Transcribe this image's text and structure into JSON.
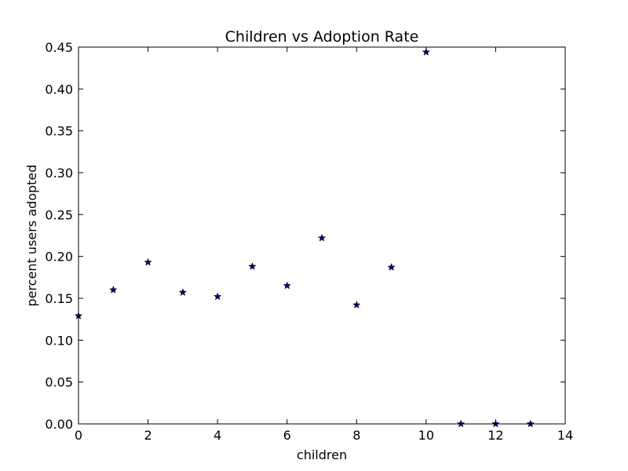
{
  "chart_data": {
    "type": "scatter",
    "title": "Children vs Adoption Rate",
    "xlabel": "children",
    "ylabel": "percent users adopted",
    "xlim": [
      0,
      14
    ],
    "ylim": [
      0,
      0.45
    ],
    "xticks": [
      0,
      2,
      4,
      6,
      8,
      10,
      12,
      14
    ],
    "xtick_labels": [
      "0",
      "2",
      "4",
      "6",
      "8",
      "10",
      "12",
      "14"
    ],
    "yticks": [
      0,
      0.05,
      0.1,
      0.15,
      0.2,
      0.25,
      0.3,
      0.35,
      0.4,
      0.45
    ],
    "ytick_labels": [
      "0.00",
      "0.05",
      "0.10",
      "0.15",
      "0.20",
      "0.25",
      "0.30",
      "0.35",
      "0.40",
      "0.45"
    ],
    "grid": false,
    "marker": "star",
    "marker_color": "#00007f",
    "series": [
      {
        "x": [
          0,
          1,
          2,
          3,
          4,
          5,
          6,
          7,
          8,
          9,
          10,
          11,
          12,
          13
        ],
        "y": [
          0.129,
          0.16,
          0.193,
          0.157,
          0.152,
          0.188,
          0.165,
          0.222,
          0.142,
          0.187,
          0.444,
          0.0,
          0.0,
          0.0
        ]
      }
    ]
  }
}
